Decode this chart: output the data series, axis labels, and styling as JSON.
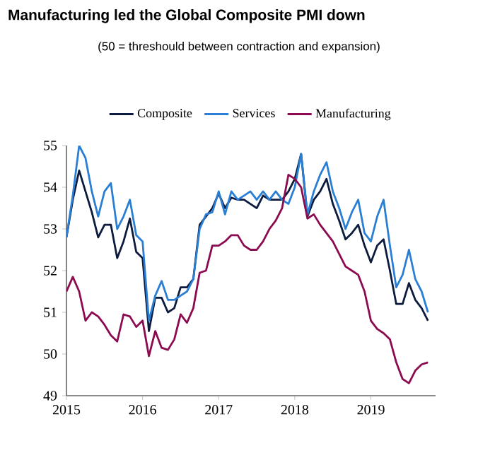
{
  "chart_data": {
    "type": "line",
    "title": "Manufacturing led the Global Composite PMI down",
    "subtitle": "(50 = threshould between contraction and expansion)",
    "x": [
      2015.0,
      2015.0833,
      2015.1667,
      2015.25,
      2015.3333,
      2015.4167,
      2015.5,
      2015.5833,
      2015.6667,
      2015.75,
      2015.8333,
      2015.9167,
      2016.0,
      2016.0833,
      2016.1667,
      2016.25,
      2016.3333,
      2016.4167,
      2016.5,
      2016.5833,
      2016.6667,
      2016.75,
      2016.8333,
      2016.9167,
      2017.0,
      2017.0833,
      2017.1667,
      2017.25,
      2017.3333,
      2017.4167,
      2017.5,
      2017.5833,
      2017.6667,
      2017.75,
      2017.8333,
      2017.9167,
      2018.0,
      2018.0833,
      2018.1667,
      2018.25,
      2018.3333,
      2018.4167,
      2018.5,
      2018.5833,
      2018.6667,
      2018.75,
      2018.8333,
      2018.9167,
      2019.0,
      2019.0833,
      2019.1667,
      2019.25,
      2019.3333,
      2019.4167,
      2019.5,
      2019.5833,
      2019.6667,
      2019.75
    ],
    "series": [
      {
        "name": "Composite",
        "color": "#0d1b3e",
        "values": [
          52.8,
          53.7,
          54.4,
          53.9,
          53.4,
          52.8,
          53.1,
          53.1,
          52.3,
          52.7,
          53.25,
          52.45,
          52.3,
          50.55,
          51.35,
          51.35,
          51.0,
          51.1,
          51.6,
          51.6,
          51.8,
          53.1,
          53.3,
          53.5,
          53.85,
          53.5,
          53.75,
          53.7,
          53.7,
          53.6,
          53.5,
          53.8,
          53.7,
          53.7,
          53.7,
          53.9,
          54.2,
          54.8,
          53.3,
          53.7,
          53.9,
          54.2,
          53.6,
          53.2,
          52.75,
          52.9,
          53.1,
          52.6,
          52.2,
          52.6,
          52.75,
          52.0,
          51.2,
          51.2,
          51.7,
          51.3,
          51.1,
          50.8
        ]
      },
      {
        "name": "Services",
        "color": "#2a7fd4",
        "values": [
          52.8,
          53.8,
          55.0,
          54.7,
          53.9,
          53.3,
          53.9,
          54.1,
          53.0,
          53.3,
          53.7,
          52.85,
          52.7,
          50.8,
          51.4,
          51.75,
          51.3,
          51.3,
          51.4,
          51.5,
          51.8,
          53.0,
          53.35,
          53.4,
          53.9,
          53.35,
          53.9,
          53.7,
          53.8,
          53.9,
          53.7,
          53.9,
          53.7,
          53.9,
          53.7,
          53.6,
          54.0,
          54.8,
          53.35,
          53.9,
          54.3,
          54.6,
          53.9,
          53.5,
          53.0,
          53.4,
          53.7,
          52.9,
          52.7,
          53.3,
          53.7,
          52.6,
          51.6,
          51.9,
          52.5,
          51.8,
          51.5,
          51.0
        ]
      },
      {
        "name": "Manufacturing",
        "color": "#8b0a50",
        "values": [
          51.5,
          51.85,
          51.5,
          50.8,
          51.0,
          50.9,
          50.7,
          50.45,
          50.3,
          50.95,
          50.9,
          50.65,
          50.8,
          49.95,
          50.55,
          50.15,
          50.1,
          50.35,
          50.95,
          50.75,
          51.1,
          51.95,
          52.0,
          52.6,
          52.6,
          52.7,
          52.85,
          52.85,
          52.6,
          52.5,
          52.5,
          52.7,
          53.0,
          53.2,
          53.5,
          54.3,
          54.2,
          54.0,
          53.25,
          53.35,
          53.1,
          52.9,
          52.7,
          52.4,
          52.1,
          52.0,
          51.9,
          51.5,
          50.8,
          50.6,
          50.5,
          50.35,
          49.8,
          49.4,
          49.3,
          49.6,
          49.75,
          49.8
        ]
      }
    ],
    "xlim": [
      2015,
      2019.85
    ],
    "ylim": [
      49,
      55
    ],
    "xticks": [
      2015,
      2016,
      2017,
      2018,
      2019
    ],
    "yticks": [
      49,
      50,
      51,
      52,
      53,
      54,
      55
    ],
    "legend": "top",
    "grid": false,
    "marker": "none",
    "line_style": "solid"
  }
}
